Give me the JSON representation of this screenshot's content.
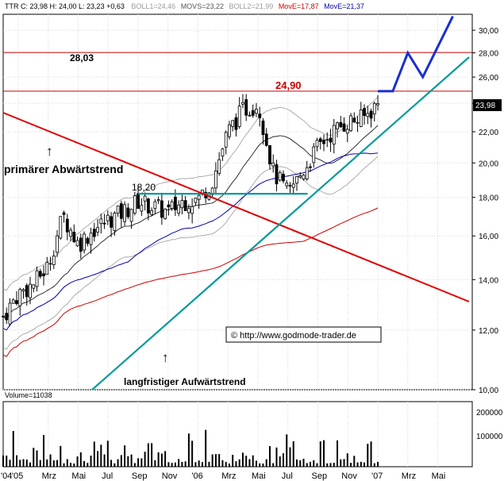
{
  "header": {
    "quote": "TTR C: 23,98 H: 24,00 L: 23,23 +0,63",
    "boll1": "BOLL1=24,46",
    "movs": "MOVS=23,22",
    "boll2": "BOLL2=21,99",
    "move1": "MovE=17,87",
    "move2": "MovE=21,37"
  },
  "colors": {
    "candle": "#000000",
    "boll": "#9a9a9a",
    "movs": "#000000",
    "move_red": "#cc0000",
    "move_blue": "#0000aa",
    "downtrend": "#e00000",
    "uptrend": "#009a9a",
    "resistance": "#cc0000",
    "forecast": "#1a2fd0",
    "price_label_bg": "#000000"
  },
  "annotations": {
    "level_high": "28,03",
    "level_mid": "24,90",
    "level_support": "18,20",
    "downtrend_label": "primärer Abwärtstrend",
    "uptrend_label": "langfristiger Aufwärtstrend",
    "copyright": "© http://www.godmode-trader.de",
    "arrow_up": "↑",
    "last_price": "23,98"
  },
  "volume": {
    "label": "Volume=11038",
    "ticks": [
      "200000",
      "100000"
    ]
  },
  "chart_data": {
    "type": "candlestick",
    "y_scale": "log",
    "ylim": [
      10,
      31.5
    ],
    "y_ticks": [
      "30,00",
      "28,00",
      "26,00",
      "24,00",
      "22,00",
      "20,00",
      "18,00",
      "16,00",
      "14,00",
      "12,00",
      "10,00"
    ],
    "x_ticks": [
      "'04",
      "'05",
      "Mrz",
      "Mai",
      "Jul",
      "Sep",
      "Nov",
      "'06",
      "Mrz",
      "Mai",
      "Jul",
      "Sep",
      "Nov",
      "'07",
      "Mrz",
      "Mai"
    ],
    "price_path": [
      [
        "2004-12",
        12.5
      ],
      [
        "2005-01",
        13.4
      ],
      [
        "2005-02",
        13.8
      ],
      [
        "2005-03",
        14.6
      ],
      [
        "2005-04",
        17.0
      ],
      [
        "2005-05",
        15.6
      ],
      [
        "2005-06",
        16.3
      ],
      [
        "2005-07",
        16.8
      ],
      [
        "2005-08",
        17.2
      ],
      [
        "2005-09",
        17.8
      ],
      [
        "2005-10",
        17.5
      ],
      [
        "2005-11",
        17.2
      ],
      [
        "2005-12",
        17.8
      ],
      [
        "2006-01",
        17.9
      ],
      [
        "2006-02",
        19.0
      ],
      [
        "2006-03",
        22.0
      ],
      [
        "2006-04",
        23.5
      ],
      [
        "2006-05",
        24.0
      ],
      [
        "2006-06",
        19.5
      ],
      [
        "2006-07",
        18.2
      ],
      [
        "2006-08",
        19.5
      ],
      [
        "2006-09",
        21.0
      ],
      [
        "2006-10",
        22.0
      ],
      [
        "2006-11",
        22.7
      ],
      [
        "2006-12",
        22.9
      ],
      [
        "2007-01",
        23.98
      ]
    ],
    "resistance_levels": [
      28.03,
      24.9
    ],
    "support_level": 18.2,
    "forecast_path": [
      [
        "2007-01",
        24.9
      ],
      [
        "2007-02",
        24.9
      ],
      [
        "2007-03",
        28.0
      ],
      [
        "2007-04",
        26.0
      ],
      [
        "2007-06",
        31.3
      ]
    ]
  }
}
